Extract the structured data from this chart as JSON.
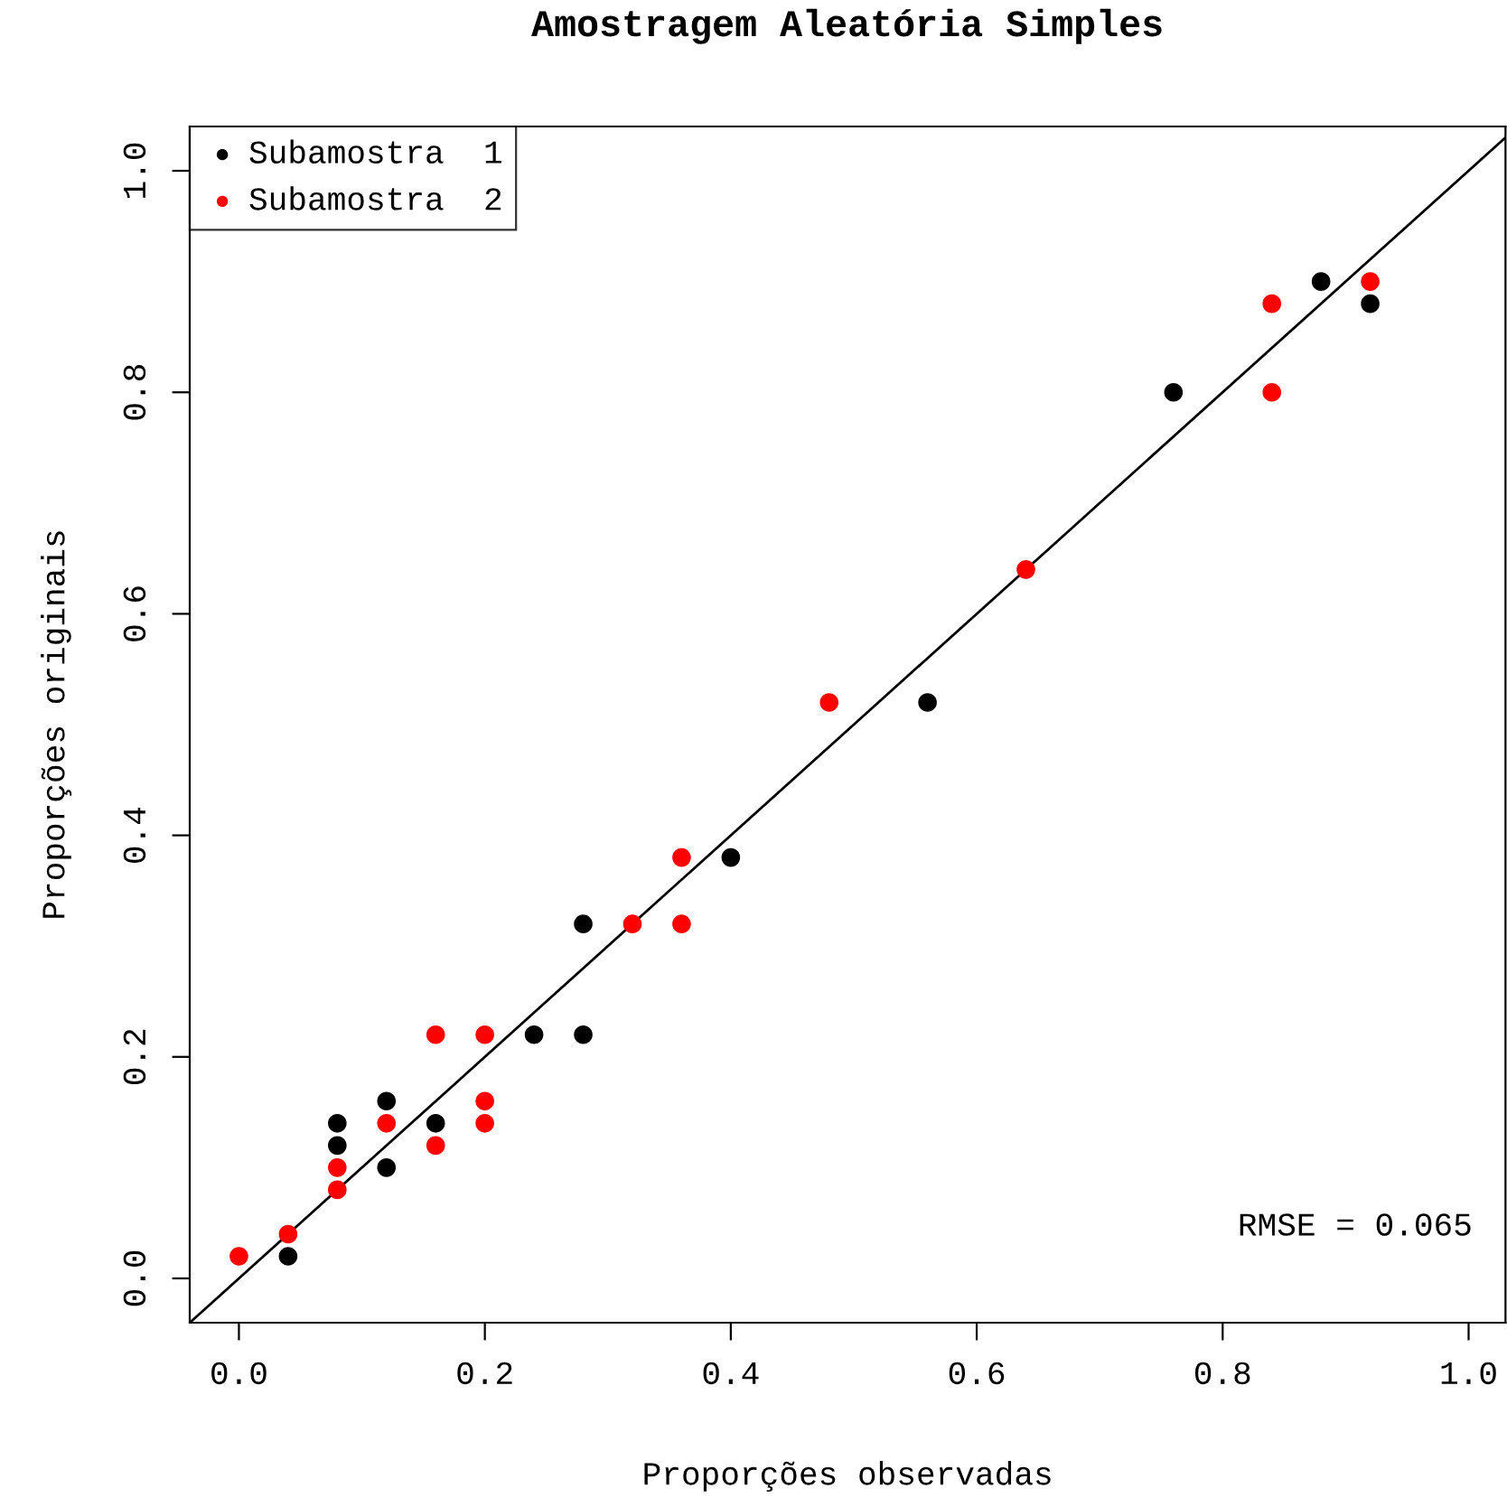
{
  "chart_data": {
    "type": "scatter",
    "title": "Amostragem Aleatória Simples",
    "xlabel": "Proporções observadas",
    "ylabel": "Proporções originais",
    "xlim": [
      -0.04,
      1.03
    ],
    "ylim": [
      -0.04,
      1.04
    ],
    "xticks": [
      {
        "value": 0,
        "label": "0.0"
      },
      {
        "value": 0.2,
        "label": "0.2"
      },
      {
        "value": 0.4,
        "label": "0.4"
      },
      {
        "value": 0.6,
        "label": "0.6"
      },
      {
        "value": 0.8,
        "label": "0.8"
      },
      {
        "value": 1,
        "label": "1.0"
      }
    ],
    "yticks": [
      {
        "value": 0,
        "label": "0.0"
      },
      {
        "value": 0.2,
        "label": "0.2"
      },
      {
        "value": 0.4,
        "label": "0.4"
      },
      {
        "value": 0.6,
        "label": "0.6"
      },
      {
        "value": 0.8,
        "label": "0.8"
      },
      {
        "value": 1,
        "label": "1.0"
      }
    ],
    "grid": false,
    "legend": "top left",
    "marker": "circle",
    "annotations": [
      "RMSE = 0.065"
    ],
    "series": [
      {
        "name": "Subamostra  1",
        "color": "#000000",
        "x": [
          0.04,
          0.08,
          0.08,
          0.12,
          0.12,
          0.16,
          0.24,
          0.28,
          0.28,
          0.4,
          0.56,
          0.76,
          0.88,
          0.92
        ],
        "values": [
          0.02,
          0.14,
          0.12,
          0.16,
          0.1,
          0.14,
          0.22,
          0.32,
          0.22,
          0.38,
          0.52,
          0.8,
          0.9,
          0.88
        ]
      },
      {
        "name": "Subamostra  2",
        "color": "#ff0000",
        "x": [
          0.0,
          0.04,
          0.08,
          0.08,
          0.12,
          0.16,
          0.16,
          0.2,
          0.2,
          0.2,
          0.32,
          0.36,
          0.36,
          0.48,
          0.64,
          0.84,
          0.84,
          0.92
        ],
        "values": [
          0.02,
          0.04,
          0.1,
          0.08,
          0.14,
          0.22,
          0.12,
          0.22,
          0.16,
          0.14,
          0.32,
          0.38,
          0.32,
          0.52,
          0.64,
          0.88,
          0.8,
          0.9
        ]
      },
      {
        "type": "line",
        "color": "#000000",
        "marker": "none",
        "x": [
          -0.04,
          1.03
        ],
        "values": [
          -0.04,
          1.03
        ]
      }
    ]
  }
}
